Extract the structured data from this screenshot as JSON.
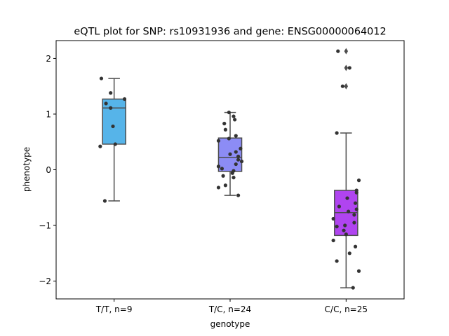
{
  "chart_data": {
    "type": "box",
    "title": "eQTL plot for SNP: rs10931936 and gene: ENSG00000064012",
    "xlabel": "genotype",
    "ylabel": "phenotype",
    "ylim": [
      -2.32,
      2.32
    ],
    "yticks": [
      2,
      1,
      0,
      -1,
      -2
    ],
    "ytick_labels": [
      "2",
      "1",
      "0",
      "−1",
      "−2"
    ],
    "categories": [
      "T/T, n=9",
      "T/C, n=24",
      "C/C, n=25"
    ],
    "boxes": [
      {
        "name": "T/T, n=9",
        "color": "#56b4e9",
        "q1": 0.46,
        "median": 1.11,
        "q3": 1.27,
        "whisker_low": -0.56,
        "whisker_high": 1.64,
        "outliers": []
      },
      {
        "name": "T/C, n=24",
        "color": "#8c8cf5",
        "q1": -0.03,
        "median": 0.22,
        "q3": 0.57,
        "whisker_low": -0.46,
        "whisker_high": 1.03,
        "outliers": []
      },
      {
        "name": "C/C, n=25",
        "color": "#b044f0",
        "q1": -1.18,
        "median": -0.77,
        "q3": -0.37,
        "whisker_low": -2.12,
        "whisker_high": 0.66,
        "outliers": [
          2.13,
          1.83,
          1.5
        ]
      }
    ],
    "points": [
      [
        {
          "x": -0.11,
          "y": 1.64
        },
        {
          "x": -0.03,
          "y": 1.38
        },
        {
          "x": -0.07,
          "y": 1.19
        },
        {
          "x": 0.09,
          "y": 1.27
        },
        {
          "x": -0.03,
          "y": 1.11
        },
        {
          "x": -0.01,
          "y": 0.78
        },
        {
          "x": -0.12,
          "y": 0.42
        },
        {
          "x": 0.01,
          "y": 0.46
        },
        {
          "x": -0.08,
          "y": -0.56
        }
      ],
      [
        {
          "x": -0.01,
          "y": 1.03
        },
        {
          "x": 0.03,
          "y": 0.96
        },
        {
          "x": 0.04,
          "y": 0.9
        },
        {
          "x": -0.05,
          "y": 0.83
        },
        {
          "x": -0.04,
          "y": 0.72
        },
        {
          "x": 0.05,
          "y": 0.61
        },
        {
          "x": -0.01,
          "y": 0.56
        },
        {
          "x": -0.1,
          "y": 0.52
        },
        {
          "x": 0.09,
          "y": 0.38
        },
        {
          "x": 0.05,
          "y": 0.32
        },
        {
          "x": 0.0,
          "y": 0.28
        },
        {
          "x": 0.07,
          "y": 0.24
        },
        {
          "x": 0.07,
          "y": 0.18
        },
        {
          "x": 0.1,
          "y": 0.15
        },
        {
          "x": 0.05,
          "y": 0.1
        },
        {
          "x": -0.1,
          "y": 0.06
        },
        {
          "x": -0.07,
          "y": 0.02
        },
        {
          "x": 0.03,
          "y": -0.02
        },
        {
          "x": 0.02,
          "y": -0.06
        },
        {
          "x": -0.06,
          "y": -0.11
        },
        {
          "x": 0.03,
          "y": -0.14
        },
        {
          "x": -0.04,
          "y": -0.28
        },
        {
          "x": -0.1,
          "y": -0.32
        },
        {
          "x": 0.07,
          "y": -0.46
        }
      ],
      [
        {
          "x": -0.07,
          "y": 2.13
        },
        {
          "x": 0.03,
          "y": 1.83
        },
        {
          "x": -0.03,
          "y": 1.5
        },
        {
          "x": -0.08,
          "y": 0.66
        },
        {
          "x": 0.11,
          "y": -0.19
        },
        {
          "x": 0.09,
          "y": -0.37
        },
        {
          "x": 0.09,
          "y": -0.41
        },
        {
          "x": 0.01,
          "y": -0.51
        },
        {
          "x": 0.08,
          "y": -0.6
        },
        {
          "x": -0.06,
          "y": -0.66
        },
        {
          "x": 0.09,
          "y": -0.71
        },
        {
          "x": 0.02,
          "y": -0.75
        },
        {
          "x": 0.07,
          "y": -0.81
        },
        {
          "x": -0.11,
          "y": -0.88
        },
        {
          "x": 0.07,
          "y": -0.95
        },
        {
          "x": -0.08,
          "y": -1.02
        },
        {
          "x": -0.02,
          "y": -1.09
        },
        {
          "x": 0.0,
          "y": -1.16
        },
        {
          "x": -0.11,
          "y": -1.27
        },
        {
          "x": 0.08,
          "y": -1.38
        },
        {
          "x": 0.03,
          "y": -1.5
        },
        {
          "x": -0.08,
          "y": -1.64
        },
        {
          "x": 0.11,
          "y": -1.82
        },
        {
          "x": 0.06,
          "y": -2.12
        },
        {
          "x": -0.01,
          "y": -1.0
        }
      ]
    ],
    "grid": false,
    "legend": "none",
    "colors": {
      "box_edge": "#4d4d4d",
      "point": "#333333",
      "axis": "#000000"
    }
  }
}
